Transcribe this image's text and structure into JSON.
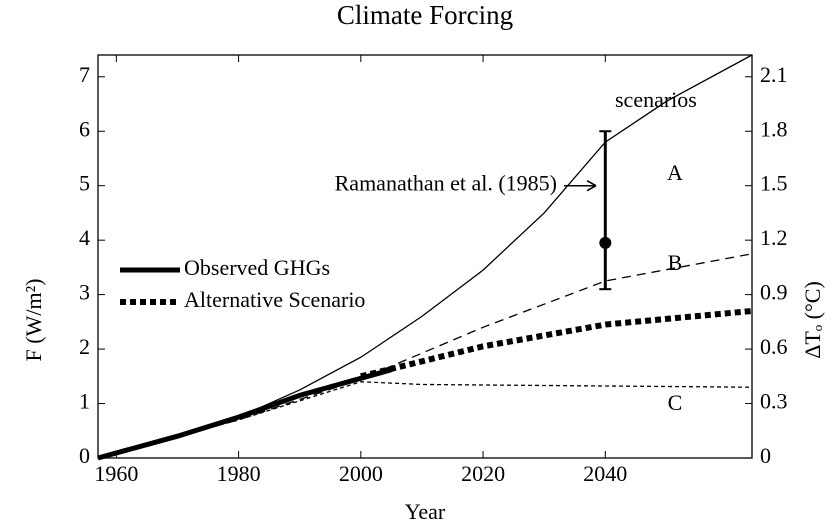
{
  "chart_data": {
    "type": "line",
    "title": "Climate Forcing",
    "xlabel": "Year",
    "ylabel": "F (W/m²)",
    "y2label": "ΔTₒ (°C)",
    "xlim": [
      1957,
      2064
    ],
    "xticks": [
      1960,
      1980,
      2000,
      2020,
      2040
    ],
    "ylim": [
      0,
      7.4
    ],
    "yticks": [
      0,
      1,
      2,
      3,
      4,
      5,
      6,
      7
    ],
    "y2lim": [
      0,
      2.22
    ],
    "y2ticks": [
      0,
      0.3,
      0.6,
      0.9,
      1.2,
      1.5,
      1.8,
      2.1
    ],
    "series": [
      {
        "name": "A",
        "color": "#000000",
        "width": 1.3,
        "dash": "none",
        "in_legend": false,
        "x": [
          1957,
          1970,
          1980,
          1990,
          2000,
          2010,
          2020,
          2030,
          2040,
          2050,
          2064
        ],
        "values": [
          0,
          0.4,
          0.75,
          1.25,
          1.85,
          2.6,
          3.45,
          4.5,
          5.8,
          6.55,
          7.4
        ]
      },
      {
        "name": "B",
        "color": "#000000",
        "width": 1.3,
        "dash": "9 6",
        "in_legend": false,
        "x": [
          1957,
          1980,
          2000,
          2020,
          2040,
          2064
        ],
        "values": [
          0,
          0.7,
          1.45,
          2.4,
          3.25,
          3.75
        ]
      },
      {
        "name": "C",
        "color": "#000000",
        "width": 1.3,
        "dash": "4 3",
        "in_legend": false,
        "x": [
          1957,
          1980,
          2000,
          2010,
          2064
        ],
        "values": [
          0,
          0.7,
          1.4,
          1.35,
          1.3
        ]
      },
      {
        "name": "Observed GHGs",
        "color": "#000000",
        "width": 5,
        "dash": "none",
        "in_legend": true,
        "x": [
          1957,
          1970,
          1980,
          1990,
          2005
        ],
        "values": [
          0,
          0.4,
          0.75,
          1.15,
          1.62
        ]
      },
      {
        "name": "Alternative Scenario",
        "color": "#000000",
        "width": 6,
        "dash": "6 4",
        "in_legend": true,
        "x": [
          2000,
          2020,
          2040,
          2064
        ],
        "values": [
          1.5,
          2.05,
          2.45,
          2.7
        ]
      }
    ],
    "error_point": {
      "label": "Ramanathan et al. (1985)",
      "x": 2040,
      "value": 3.95,
      "low": 3.1,
      "high": 6.0
    },
    "annotation": "scenarios"
  }
}
